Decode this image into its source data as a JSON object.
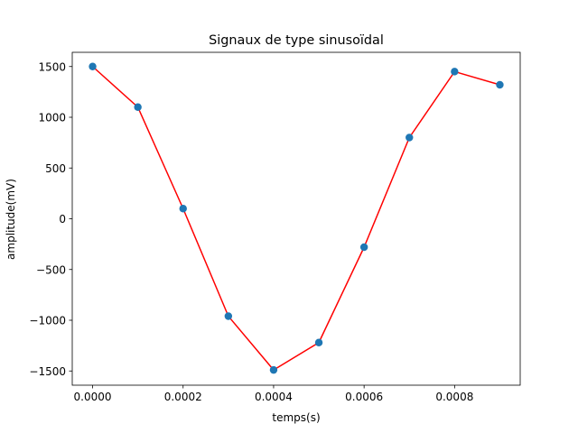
{
  "chart_data": {
    "type": "line",
    "title": "Signaux de type sinusoïdal",
    "xlabel": "temps(s)",
    "ylabel": "amplitude(mV)",
    "xlim": [
      -4.5e-05,
      0.000945
    ],
    "ylim": [
      -1640,
      1640
    ],
    "xticks": [
      0,
      0.0002,
      0.0004,
      0.0006,
      0.0008
    ],
    "xtick_labels": [
      "0.0000",
      "0.0002",
      "0.0004",
      "0.0006",
      "0.0008"
    ],
    "yticks": [
      -1500,
      -1000,
      -500,
      0,
      500,
      1000,
      1500
    ],
    "ytick_labels": [
      "−1500",
      "−1000",
      "−500",
      "0",
      "500",
      "1000",
      "1500"
    ],
    "grid": false,
    "series": [
      {
        "style": "line+markers",
        "line_color": "#ff0000",
        "marker_color": "#1f77b4",
        "x": [
          0,
          0.0001,
          0.0002,
          0.0003,
          0.0004,
          0.0005,
          0.0006,
          0.0007,
          0.0008,
          0.0009
        ],
        "y": [
          1500,
          1100,
          100,
          -960,
          -1490,
          -1220,
          -280,
          800,
          1450,
          1320
        ]
      }
    ]
  }
}
